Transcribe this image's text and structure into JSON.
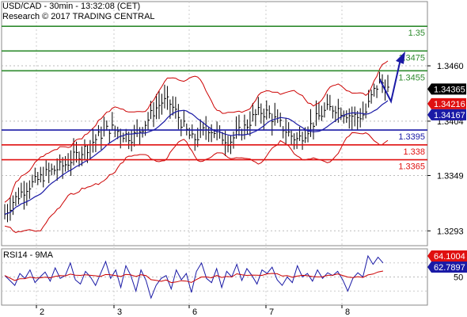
{
  "header": {
    "line1": "USD/CAD - 30min - 13:32:08 (CET)",
    "line2": "Research © 2017 TRADING CENTRAL"
  },
  "chart_data": [
    {
      "type": "line",
      "name": "price",
      "x_ticks": [
        "2",
        "3",
        "6",
        "7",
        "8"
      ],
      "y_ticks": [
        "1.3460",
        "1.3404",
        "1.3349",
        "1.3293"
      ],
      "ylim": [
        1.3278,
        1.3525
      ],
      "price_series": [
        1.331,
        1.3322,
        1.333,
        1.3338,
        1.3342,
        1.3348,
        1.3353,
        1.3356,
        1.336,
        1.3366,
        1.3372,
        1.3378,
        1.3385,
        1.3392,
        1.3397,
        1.3394,
        1.339,
        1.3388,
        1.3395,
        1.3405,
        1.3416,
        1.3424,
        1.3422,
        1.341,
        1.3396,
        1.3385,
        1.339,
        1.3398,
        1.3393,
        1.3388,
        1.3384,
        1.3391,
        1.3398,
        1.3407,
        1.3414,
        1.3412,
        1.3405,
        1.3398,
        1.339,
        1.3385,
        1.3393,
        1.3402,
        1.341,
        1.3416,
        1.3418,
        1.3414,
        1.341,
        1.3408,
        1.3412,
        1.3432,
        1.3445,
        1.3436
      ],
      "levels": [
        {
          "value": 1.35,
          "label": "1.35",
          "color": "#2e8b2e"
        },
        {
          "value": 1.3475,
          "label": "1.3475",
          "color": "#2e8b2e"
        },
        {
          "value": 1.3455,
          "label": "1.3455",
          "color": "#2e8b2e"
        },
        {
          "value": 1.3395,
          "label": "1.3395",
          "color": "#1a1aa6"
        },
        {
          "value": 1.338,
          "label": "1.338",
          "color": "#e01010"
        },
        {
          "value": 1.3365,
          "label": "1.3365",
          "color": "#e01010"
        }
      ],
      "badges": [
        {
          "value": 1.34365,
          "label": "1.34365",
          "bg": "#000000",
          "fg": "#ffffff"
        },
        {
          "value": 1.34216,
          "label": "1.34216",
          "bg": "#e01010",
          "fg": "#ffffff"
        },
        {
          "value": 1.34167,
          "label": "1.34167",
          "bg": "#1a1aa6",
          "fg": "#ffffff"
        }
      ],
      "forecast": [
        1.3424,
        1.3473
      ],
      "colors": {
        "bars": "#000000",
        "bollinger": "#cc0000",
        "moving_average": "#1a1aa6",
        "forecast": "#1a1aa6"
      }
    },
    {
      "type": "line",
      "name": "rsi",
      "title": "RSI14 - 9MA",
      "y_ticks": [
        "50"
      ],
      "ylim": [
        10,
        90
      ],
      "rsi_series": [
        52,
        45,
        38,
        55,
        48,
        60,
        42,
        50,
        57,
        44,
        63,
        48,
        52,
        70,
        46,
        40,
        58,
        50,
        38,
        55,
        72,
        48,
        60,
        35,
        66,
        52,
        30,
        60,
        45,
        20,
        38,
        48,
        52,
        33,
        60,
        46,
        55,
        28,
        58,
        70,
        48,
        42,
        62,
        35,
        58,
        50,
        68,
        45,
        62,
        52,
        40,
        60,
        55,
        64,
        46,
        38,
        50,
        42,
        66,
        50,
        55,
        44,
        60,
        48,
        56,
        52,
        58,
        46,
        30,
        48,
        56,
        50,
        80,
        68,
        78,
        70
      ],
      "badges": [
        {
          "value": 64.1004,
          "label": "64.1004",
          "bg": "#e01010",
          "fg": "#ffffff"
        },
        {
          "value": 62.7897,
          "label": "62.7897",
          "bg": "#1a1aa6",
          "fg": "#ffffff"
        }
      ],
      "colors": {
        "rsi": "#1a1aa6",
        "ma": "#cc0000"
      }
    }
  ]
}
